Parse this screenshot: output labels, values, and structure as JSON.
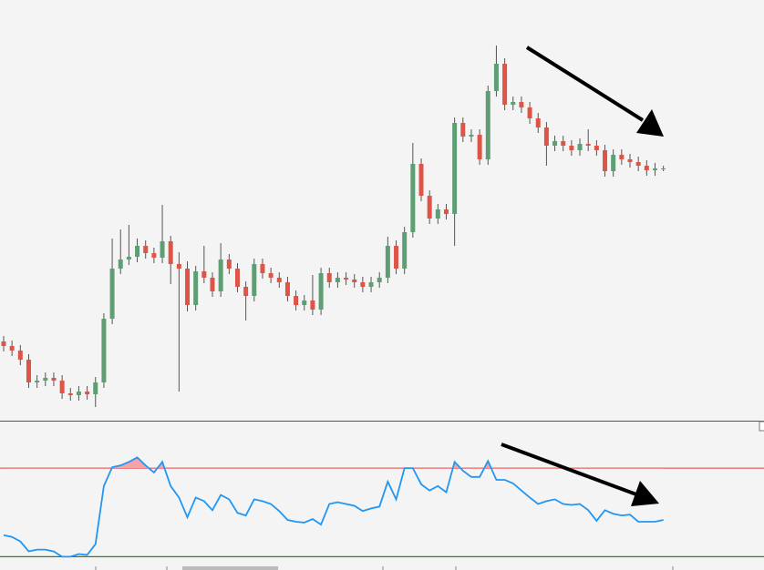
{
  "chart_data": [
    {
      "type": "candlestick",
      "open": [
        87,
        82,
        77,
        67,
        42,
        44,
        47,
        44,
        30,
        28,
        32,
        29,
        42,
        112,
        167,
        177,
        180,
        192,
        184,
        179,
        197,
        172,
        167,
        127,
        164,
        157,
        142,
        177,
        167,
        147,
        137,
        172,
        162,
        157,
        152,
        137,
        127,
        132,
        122,
        162,
        152,
        157,
        155,
        152,
        147,
        152,
        157,
        192,
        167,
        207,
        282,
        247,
        222,
        232,
        227,
        327,
        312,
        314,
        287,
        362,
        392,
        347,
        350,
        344,
        332,
        322,
        302,
        307,
        302,
        297,
        304,
        302,
        297,
        274,
        292,
        287,
        284,
        280,
        275,
        277
      ],
      "high": [
        93,
        88,
        83,
        73,
        50,
        53,
        53,
        50,
        36,
        38,
        38,
        48,
        118,
        200,
        210,
        215,
        200,
        198,
        190,
        237,
        203,
        185,
        175,
        170,
        192,
        163,
        195,
        183,
        173,
        153,
        178,
        178,
        168,
        163,
        158,
        143,
        138,
        160,
        168,
        168,
        163,
        163,
        161,
        158,
        158,
        163,
        202,
        198,
        213,
        305,
        288,
        253,
        238,
        238,
        333,
        333,
        320,
        320,
        368,
        412,
        398,
        356,
        356,
        350,
        338,
        328,
        313,
        313,
        308,
        310,
        320,
        308,
        303,
        298,
        298,
        293,
        290,
        286,
        283,
        280
      ],
      "low": [
        76,
        71,
        61,
        36,
        36,
        38,
        38,
        24,
        22,
        22,
        23,
        15,
        36,
        106,
        161,
        171,
        174,
        178,
        173,
        173,
        150,
        32,
        120,
        121,
        151,
        136,
        136,
        161,
        141,
        110,
        131,
        156,
        151,
        146,
        131,
        121,
        121,
        116,
        116,
        146,
        146,
        149,
        146,
        141,
        141,
        146,
        151,
        161,
        161,
        201,
        241,
        216,
        216,
        221,
        192,
        306,
        306,
        281,
        281,
        356,
        341,
        341,
        338,
        326,
        316,
        280,
        296,
        296,
        291,
        291,
        296,
        291,
        268,
        268,
        281,
        278,
        274,
        269,
        269,
        274
      ],
      "close": [
        82,
        77,
        67,
        42,
        44,
        47,
        44,
        30,
        28,
        32,
        29,
        42,
        112,
        167,
        177,
        180,
        192,
        184,
        179,
        197,
        172,
        167,
        127,
        164,
        157,
        142,
        177,
        167,
        147,
        137,
        172,
        162,
        157,
        152,
        137,
        127,
        132,
        122,
        162,
        152,
        157,
        155,
        152,
        147,
        152,
        157,
        192,
        167,
        207,
        282,
        247,
        222,
        232,
        227,
        327,
        312,
        314,
        287,
        362,
        392,
        347,
        350,
        344,
        332,
        322,
        302,
        307,
        302,
        297,
        304,
        302,
        297,
        274,
        292,
        287,
        284,
        280,
        275,
        277,
        277
      ],
      "ylim": [
        0,
        462
      ],
      "up_color": "#5f9e74",
      "down_color": "#de5548"
    },
    {
      "type": "line",
      "values": [
        39.7,
        38.9,
        36.9,
        32.4,
        33.2,
        33.2,
        32.4,
        30,
        30,
        31.2,
        30.8,
        35.7,
        61.9,
        70.4,
        71.2,
        72.8,
        74.8,
        71.2,
        68,
        72.8,
        61.9,
        56.7,
        47.8,
        56.7,
        55.1,
        51,
        57.9,
        55.9,
        49.8,
        48.6,
        55.9,
        55.1,
        53.8,
        50.6,
        46.6,
        45.8,
        45.4,
        47,
        44.5,
        53.8,
        54.6,
        53.8,
        53,
        50.6,
        51.8,
        52.6,
        63.9,
        55.9,
        70,
        70,
        62.7,
        59.9,
        61.9,
        59.1,
        72.8,
        68.8,
        66,
        66,
        73.2,
        64.7,
        64.7,
        63.1,
        59.9,
        56.7,
        53.8,
        55.1,
        55.9,
        53.8,
        53.4,
        53.8,
        51,
        46.2,
        51,
        49.4,
        48.6,
        49,
        45.8,
        45.8,
        45.8,
        46.6
      ],
      "ylim": [
        24,
        91
      ],
      "upper_level": 70,
      "lower_level": 30,
      "color": "#2196f3",
      "upper_color": "#e53935",
      "lower_color": "#2e7d32",
      "fill_color": "#f4a3a8"
    }
  ]
}
